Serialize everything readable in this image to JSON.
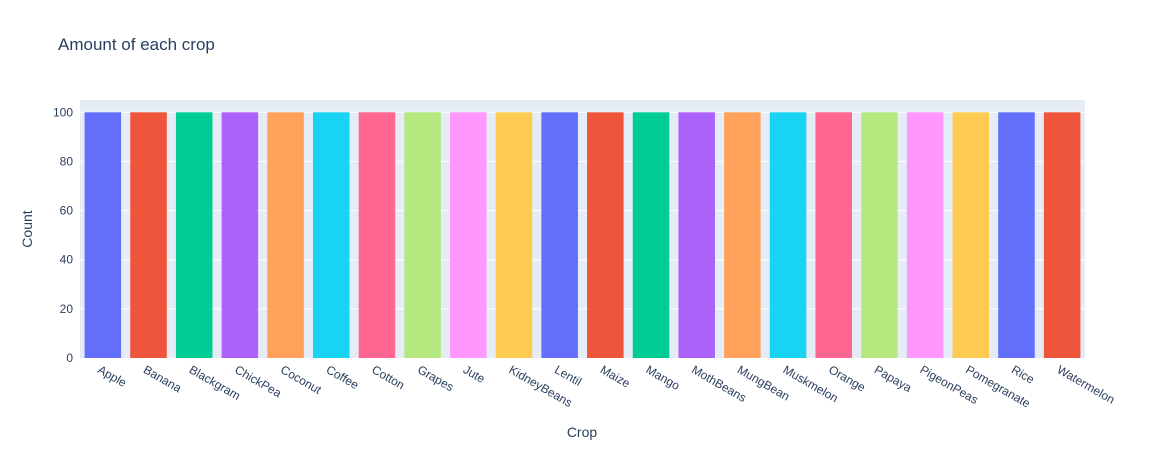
{
  "chart_data": {
    "type": "bar",
    "title": "Amount of each crop",
    "xlabel": "Crop",
    "ylabel": "Count",
    "categories": [
      "Apple",
      "Banana",
      "Blackgram",
      "ChickPea",
      "Coconut",
      "Coffee",
      "Cotton",
      "Grapes",
      "Jute",
      "KidneyBeans",
      "Lentil",
      "Maize",
      "Mango",
      "MothBeans",
      "MungBean",
      "Muskmelon",
      "Orange",
      "Papaya",
      "PigeonPeas",
      "Pomegranate",
      "Rice",
      "Watermelon"
    ],
    "values": [
      100,
      100,
      100,
      100,
      100,
      100,
      100,
      100,
      100,
      100,
      100,
      100,
      100,
      100,
      100,
      100,
      100,
      100,
      100,
      100,
      100,
      100
    ],
    "ylim": [
      0,
      105
    ],
    "yticks": [
      0,
      20,
      40,
      60,
      80,
      100
    ],
    "grid": true,
    "legend": "none",
    "colors": [
      "#636efa",
      "#EF553B",
      "#00cc96",
      "#ab63fa",
      "#FFA15A",
      "#19d3f3",
      "#FF6692",
      "#B6E880",
      "#FF97FF",
      "#FECB52"
    ],
    "plot_background": "#e5ecf6",
    "gridline_color": "#ffffff"
  }
}
